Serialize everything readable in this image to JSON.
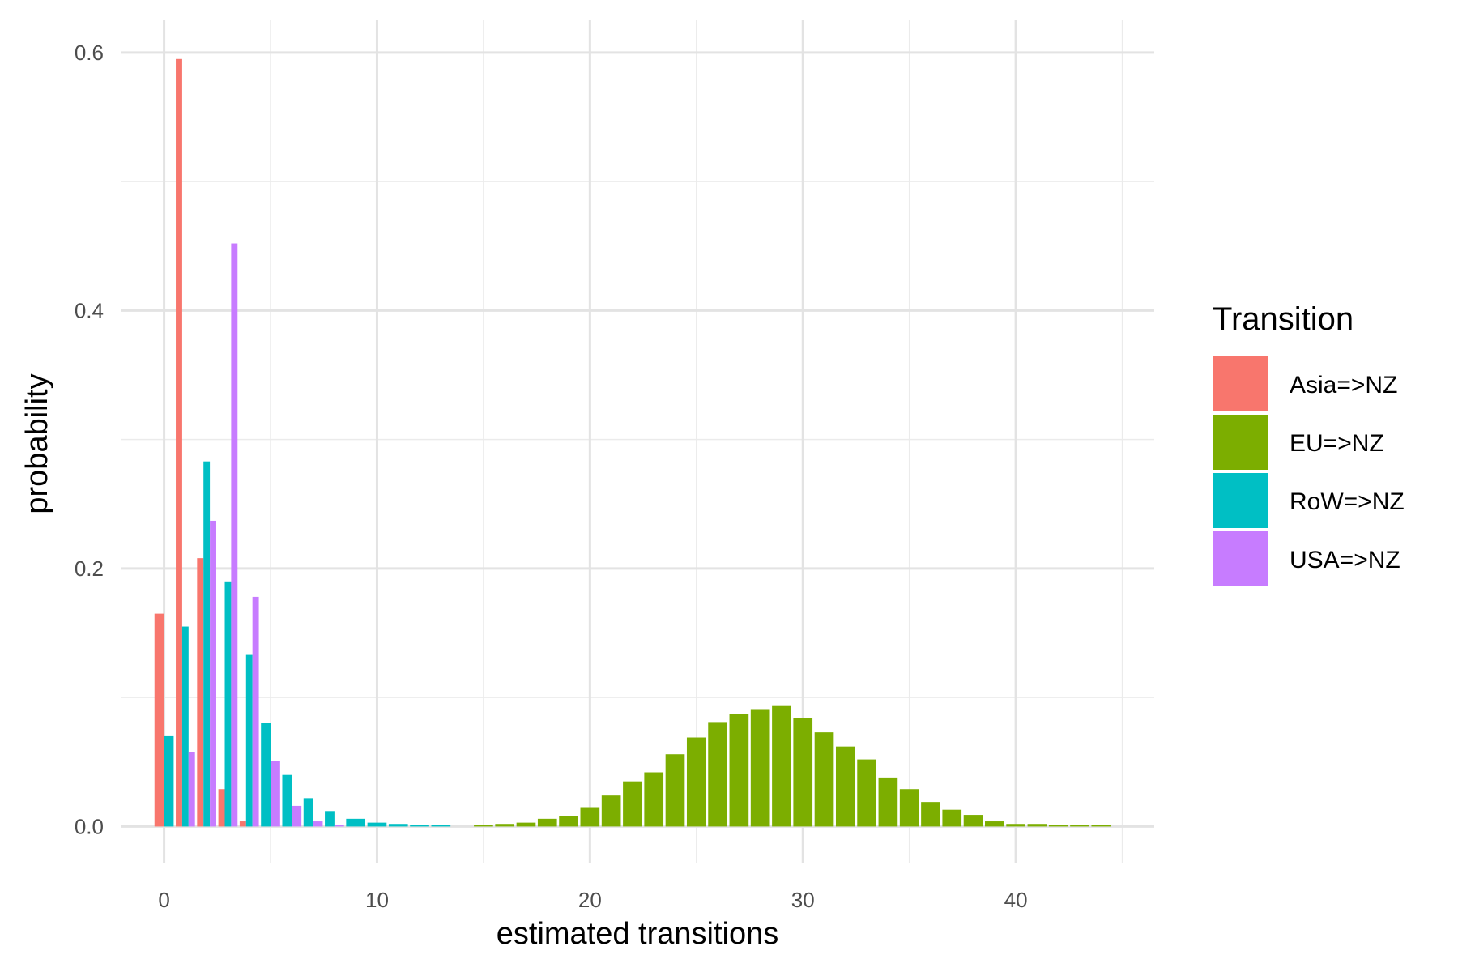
{
  "chart_data": {
    "type": "bar",
    "title": "",
    "xlabel": "estimated transitions",
    "ylabel": "probability",
    "xlim": [
      -2,
      46.5
    ],
    "ylim": [
      -0.028,
      0.625
    ],
    "x_ticks": [
      "0",
      "10",
      "20",
      "30",
      "40"
    ],
    "y_ticks": [
      "0.0",
      "0.2",
      "0.4",
      "0.6"
    ],
    "x_tick_values": [
      0,
      10,
      20,
      30,
      40
    ],
    "y_tick_values": [
      0,
      0.2,
      0.4,
      0.6
    ],
    "grid": true,
    "legend_position": "right",
    "legend_title": "Transition",
    "series": [
      {
        "name": "Asia=>NZ",
        "color": "#F8766D",
        "x": [
          0,
          1,
          2,
          3,
          4
        ],
        "values": [
          0.165,
          0.595,
          0.208,
          0.029,
          0.004
        ]
      },
      {
        "name": "EU=>NZ",
        "color": "#7CAE00",
        "x": [
          15,
          16,
          17,
          18,
          19,
          20,
          21,
          22,
          23,
          24,
          25,
          26,
          27,
          28,
          29,
          30,
          31,
          32,
          33,
          34,
          35,
          36,
          37,
          38,
          39,
          40,
          41,
          42,
          43,
          44
        ],
        "values": [
          0.001,
          0.002,
          0.003,
          0.006,
          0.008,
          0.015,
          0.024,
          0.035,
          0.042,
          0.056,
          0.069,
          0.081,
          0.087,
          0.091,
          0.094,
          0.084,
          0.073,
          0.062,
          0.052,
          0.038,
          0.029,
          0.019,
          0.013,
          0.009,
          0.004,
          0.002,
          0.002,
          0.001,
          0.001,
          0.001
        ]
      },
      {
        "name": "RoW=>NZ",
        "color": "#00BFC4",
        "x": [
          0,
          1,
          2,
          3,
          4,
          5,
          6,
          7,
          8,
          9,
          10,
          11,
          12,
          13
        ],
        "values": [
          0.07,
          0.155,
          0.283,
          0.19,
          0.133,
          0.08,
          0.04,
          0.022,
          0.012,
          0.006,
          0.003,
          0.002,
          0.001,
          0.001
        ]
      },
      {
        "name": "USA=>NZ",
        "color": "#C77CFF",
        "x": [
          1,
          2,
          3,
          4,
          5,
          6,
          7,
          8
        ],
        "values": [
          0.058,
          0.237,
          0.452,
          0.178,
          0.051,
          0.016,
          0.004,
          0.001
        ]
      }
    ]
  }
}
